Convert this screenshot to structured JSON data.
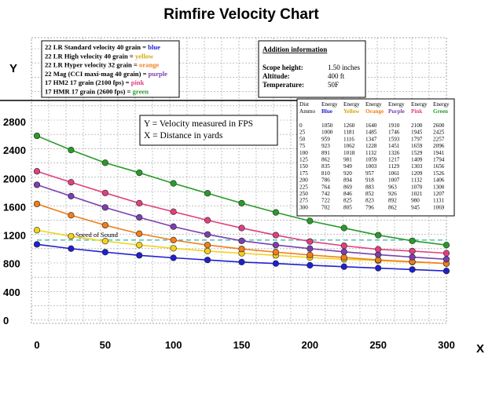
{
  "chart_data": {
    "type": "line",
    "title": "Rimfire Velocity Chart",
    "ylabel": "Y",
    "xlabel": "X",
    "x": [
      0,
      25,
      50,
      75,
      100,
      125,
      150,
      175,
      200,
      225,
      250,
      275,
      300
    ],
    "x_ticks": [
      "0",
      "50",
      "100",
      "150",
      "200",
      "250",
      "300"
    ],
    "xlim": [
      0,
      300
    ],
    "y_ticks": [
      "0",
      "400",
      "800",
      "1200",
      "1600",
      "2000",
      "2400",
      "2800"
    ],
    "ylim": [
      0,
      2800
    ],
    "grid": true,
    "series": [
      {
        "name": "22 LR Standard velocity 40 grain = blue",
        "legend_main": "22 LR Standard velocity 40 grain = ",
        "legend_color": "blue",
        "color": "#1f1fd0",
        "values": [
          1070,
          1010,
          960,
          915,
          880,
          850,
          820,
          800,
          775,
          755,
          735,
          715,
          695
        ]
      },
      {
        "name": "22 LR High velocity 40 grain = yellow",
        "legend_main": "22 LR High velocity 40 grain = ",
        "legend_color": "yellow",
        "color": "#f2d21c",
        "values": [
          1270,
          1185,
          1115,
          1060,
          1015,
          975,
          945,
          915,
          885,
          860,
          840,
          820,
          800
        ]
      },
      {
        "name": "22 LR Hyper velocity 32 grain = orange",
        "legend_main": "22 LR Hyper velocity 32 grain = ",
        "legend_color": "orange",
        "color": "#f07e1a",
        "values": [
          1640,
          1480,
          1340,
          1220,
          1130,
          1060,
          1005,
          960,
          920,
          885,
          850,
          825,
          800
        ]
      },
      {
        "name": "22 Mag (CCI maxi-mag 40 grain) = purple",
        "legend_main": "22 Mag (CCI maxi-mag 40 grain) = ",
        "legend_color": "purple",
        "color": "#7a3fb0",
        "values": [
          1910,
          1750,
          1590,
          1450,
          1320,
          1210,
          1120,
          1060,
          1010,
          965,
          925,
          890,
          860
        ]
      },
      {
        "name": "17 HM2 17 grain (2100 fps) = pink",
        "legend_main": "17 HM2 17 grain (2100 fps) = ",
        "legend_color": "pink",
        "color": "#e0407f",
        "values": [
          2100,
          1945,
          1795,
          1650,
          1530,
          1410,
          1300,
          1200,
          1110,
          1050,
          1000,
          975,
          945
        ]
      },
      {
        "name": "17 HMR 17 grain (2600 fps) = green",
        "legend_main": "17 HMR 17 grain (2600 fps) = ",
        "legend_color": "green",
        "color": "#2a9a2a",
        "values": [
          2600,
          2400,
          2220,
          2080,
          1930,
          1790,
          1650,
          1520,
          1400,
          1300,
          1200,
          1120,
          1060
        ]
      }
    ],
    "annotations": {
      "speed_of_sound_label": "Speed of Sound",
      "speed_of_sound_value": 1130,
      "definitions": [
        "Y = Velocity measured in FPS",
        "X = Distance in yards"
      ]
    },
    "info_box": {
      "title": "Addition information",
      "rows": [
        {
          "label": "Scope height:",
          "value": "1.50 inches"
        },
        {
          "label": "Altitude:",
          "value": "400 ft"
        },
        {
          "label": "Temperature:",
          "value": "50F"
        }
      ]
    },
    "energy_table": {
      "header_row1": [
        "Dist",
        "Energy",
        "Energy",
        "Energy",
        "Energy",
        "Energy",
        "Energy"
      ],
      "header_row2": [
        "Ammo",
        "Blue",
        "Yellow",
        "Orange",
        "Purple",
        "Pink",
        "Green"
      ],
      "header_colors": [
        "#000000",
        "#1f1fd0",
        "#d4a800",
        "#f07e1a",
        "#7a3fb0",
        "#e0407f",
        "#2a9a2a"
      ],
      "rows": [
        [
          "0",
          "1050",
          "1260",
          "1640",
          "1910",
          "2100",
          "2600"
        ],
        [
          "25",
          "1000",
          "1181",
          "1485",
          "1746",
          "1945",
          "2425"
        ],
        [
          "50",
          "959",
          "1116",
          "1347",
          "1593",
          "1797",
          "2257"
        ],
        [
          "75",
          "923",
          "1062",
          "1228",
          "1451",
          "1659",
          "2096"
        ],
        [
          "100",
          "891",
          "1018",
          "1132",
          "1326",
          "1529",
          "1941"
        ],
        [
          "125",
          "862",
          "981",
          "1059",
          "1217",
          "1409",
          "1794"
        ],
        [
          "150",
          "835",
          "949",
          "1003",
          "1129",
          "1303",
          "1656"
        ],
        [
          "175",
          "810",
          "920",
          "957",
          "1061",
          "1209",
          "1526"
        ],
        [
          "200",
          "786",
          "894",
          "918",
          "1007",
          "1132",
          "1406"
        ],
        [
          "225",
          "764",
          "869",
          "883",
          "963",
          "1070",
          "1300"
        ],
        [
          "250",
          "742",
          "846",
          "852",
          "926",
          "1021",
          "1207"
        ],
        [
          "275",
          "722",
          "825",
          "823",
          "892",
          "980",
          "1131"
        ],
        [
          "300",
          "702",
          "805",
          "796",
          "862",
          "945",
          "1069"
        ]
      ]
    }
  }
}
